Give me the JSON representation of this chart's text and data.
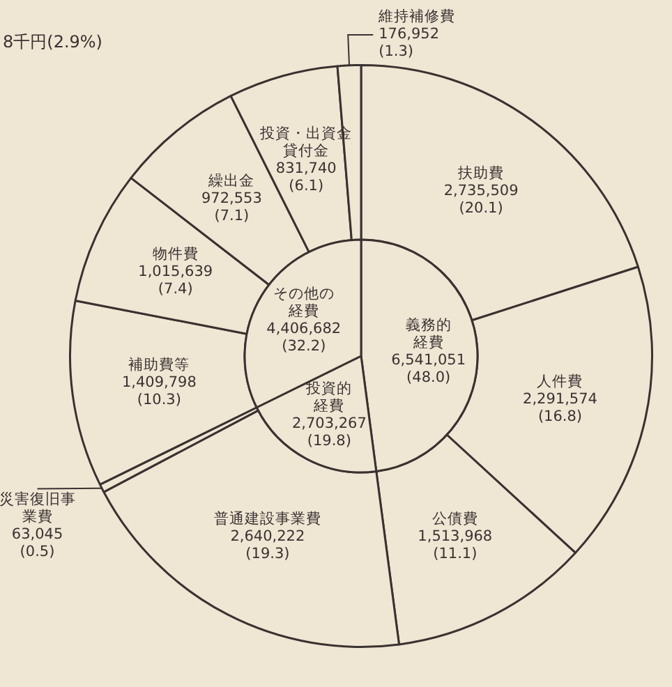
{
  "chart_data": [
    {
      "type": "donut",
      "legend": false,
      "annotations": [
        "8千円(2.9%)"
      ],
      "categories": [
        "扶助費",
        "人件費",
        "公債費",
        "普通建設事業費",
        "災害復旧事業費",
        "補助費等",
        "物件費",
        "繰出金",
        "投資・出資金貸付金",
        "維持補修費"
      ],
      "values": [
        2735509,
        2291574,
        1513968,
        2640222,
        63045,
        1409798,
        1015639,
        972553,
        831740,
        176952
      ],
      "value_labels": [
        "2,735,509\n(20.1)",
        "2,291,574\n(16.8)",
        "1,513,968\n(11.1)",
        "2,640,222\n(19.3)",
        "63,045\n(0.5)",
        "1,409,798\n(10.3)",
        "1,015,639\n(7.4)",
        "972,553\n(7.1)",
        "831,740\n(6.1)",
        "176,952\n(1.3)"
      ],
      "colors": [
        "#efe6d4",
        "#efe6d4",
        "#efe6d4",
        "#efe6d4",
        "#efe6d4",
        "#efe6d4",
        "#efe6d4",
        "#efe6d4",
        "#efe6d4",
        "#efe6d4"
      ]
    },
    {
      "type": "pie",
      "legend": false,
      "categories": [
        "義務的経費",
        "投資的経費",
        "その他の経費"
      ],
      "values": [
        6541051,
        2703267,
        4406682
      ],
      "value_labels": [
        "6,541,051\n(48.0)",
        "2,703,267\n(19.8)",
        "4,406,682\n(32.2)"
      ],
      "colors": [
        "#efe6d4",
        "#efe6d4",
        "#efe6d4"
      ]
    }
  ]
}
